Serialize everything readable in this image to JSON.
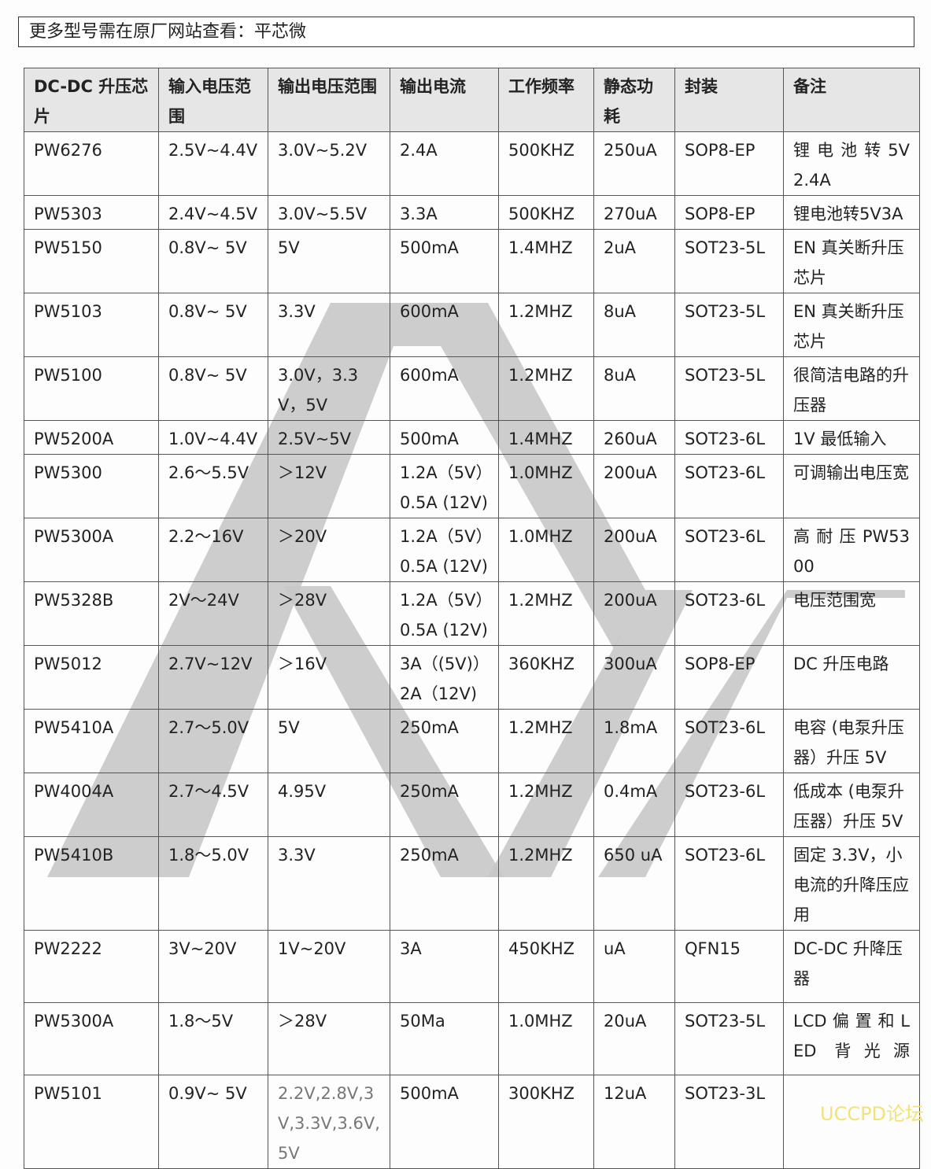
{
  "notice": "更多型号需在原厂网站查看：平芯微",
  "table": {
    "headers": [
      "DC-DC 升压芯片",
      "输入电压范围",
      "输出电压范围",
      "输出电流",
      "工作频率",
      "静态功耗",
      "封装",
      "备注"
    ],
    "rows": [
      [
        "PW6276",
        "2.5V~4.4V",
        "3.0V~5.2V",
        "2.4A",
        "500KHZ",
        "250uA",
        "SOP8-EP",
        "锂 电 池 转 5V2.4A"
      ],
      [
        "PW5303",
        "2.4V~4.5V",
        "3.0V~5.5V",
        "3.3A",
        "500KHZ",
        "270uA",
        "SOP8-EP",
        "锂电池转5V3A"
      ],
      [
        "PW5150",
        "0.8V~ 5V",
        "5V",
        "500mA",
        "1.4MHZ",
        "2uA",
        "SOT23-5L",
        "EN 真关断升压芯片"
      ],
      [
        "PW5103",
        "0.8V~ 5V",
        "3.3V",
        "600mA",
        "1.2MHZ",
        "8uA",
        "SOT23-5L",
        "EN 真关断升压芯片"
      ],
      [
        "PW5100",
        "0.8V~ 5V",
        "3.0V，3.3V，5V",
        "600mA",
        "1.2MHZ",
        "8uA",
        "SOT23-5L",
        "很简洁电路的升压器"
      ],
      [
        "PW5200A",
        "1.0V~4.4V",
        "2.5V~5V",
        "500mA",
        "1.4MHZ",
        "260uA",
        "SOT23-6L",
        "1V 最低输入"
      ],
      [
        "PW5300",
        "2.6～5.5V",
        "＞12V",
        "1.2A（5V）0.5A (12V)",
        "1.0MHZ",
        "200uA",
        "SOT23-6L",
        "可调输出电压宽"
      ],
      [
        "PW5300A",
        "2.2～16V",
        "＞20V",
        "1.2A（5V）0.5A (12V)",
        "1.0MHZ",
        "200uA",
        "SOT23-6L",
        "高 耐 压 PW5300"
      ],
      [
        "PW5328B",
        "2V～24V",
        "＞28V",
        "1.2A（5V）0.5A (12V)",
        "1.2MHZ",
        "200uA",
        "SOT23-6L",
        "电压范围宽"
      ],
      [
        "PW5012",
        "2.7V~12V",
        "＞16V",
        "3A（(5V)）2A（12V)",
        "360KHZ",
        "300uA",
        "SOP8-EP",
        "DC 升压电路"
      ],
      [
        "PW5410A",
        "2.7～5.0V",
        "5V",
        "250mA",
        "1.2MHZ",
        "1.8mA",
        "SOT23-6L",
        "电容 (电泵升压器）升压 5V"
      ],
      [
        "PW4004A",
        "2.7～4.5V",
        "4.95V",
        "250mA",
        "1.2MHZ",
        "0.4mA",
        "SOT23-6L",
        "低成本 (电泵升压器）升压 5V"
      ],
      [
        "PW5410B",
        "1.8～5.0V",
        "3.3V",
        "250mA",
        "1.2MHZ",
        "650 uA",
        "SOT23-6L",
        "固定 3.3V，小电流的升降压应用"
      ],
      [
        "PW2222",
        "3V~20V",
        "1V~20V",
        "3A",
        "450KHZ",
        "uA",
        "QFN15",
        "DC-DC 升降压器"
      ],
      [
        "PW5300A",
        "1.8～5V",
        "＞28V",
        "50Ma",
        "1.0MHZ",
        "20uA",
        "SOT23-5L",
        "LCD 偏 置 和 LED 背光源"
      ],
      [
        "PW5101",
        "0.9V~ 5V",
        "2.2V,2.8V,3V,3.3V,3.6V,5V",
        "500mA",
        "300KHZ",
        "12uA",
        "SOT23-3L",
        ""
      ]
    ]
  },
  "watermark": {
    "icon": "brand-logo-watermark",
    "color": "#c8c8c8"
  },
  "footer": "UCCPD论坛"
}
